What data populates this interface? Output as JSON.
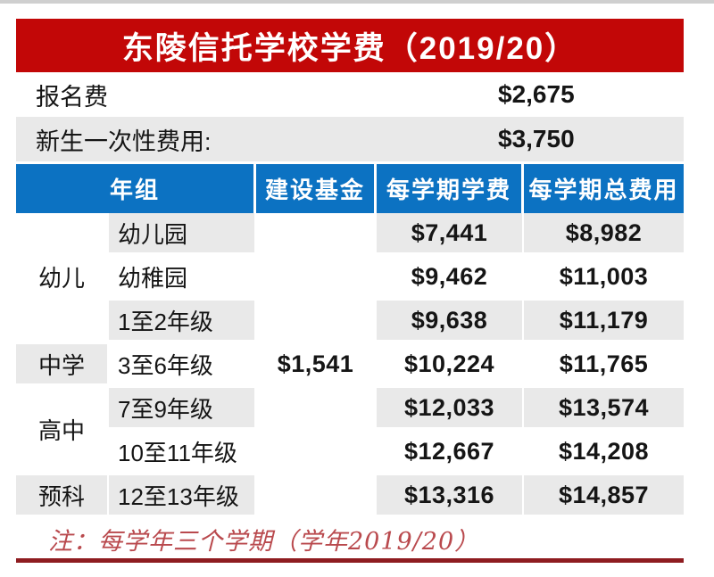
{
  "title": "东陵信托学校学费（2019/20）",
  "pre_rows": [
    {
      "label": "报名费",
      "value": "$2,675"
    },
    {
      "label": "新生一次性费用:",
      "value": "$3,750"
    }
  ],
  "table": {
    "headers": [
      "年组",
      "建设基金",
      "每学期学费",
      "每学期总费用"
    ],
    "groups": [
      {
        "label": "幼儿",
        "span": 3
      },
      {
        "label": "中学",
        "span": 1
      },
      {
        "label": "高中",
        "span": 2
      },
      {
        "label": "预科",
        "span": 1
      }
    ],
    "development_levy": "$1,541",
    "rows": [
      {
        "grade": "幼儿园",
        "fee": "$7,441",
        "total": "$8,982"
      },
      {
        "grade": "幼稚园",
        "fee": "$9,462",
        "total": "$11,003"
      },
      {
        "grade": "1至2年级",
        "fee": "$9,638",
        "total": "$11,179"
      },
      {
        "grade": "3至6年级",
        "fee": "$10,224",
        "total": "$11,765"
      },
      {
        "grade": "7至9年级",
        "fee": "$12,033",
        "total": "$13,574"
      },
      {
        "grade": "10至11年级",
        "fee": "$12,667",
        "total": "$14,208"
      },
      {
        "grade": "12至13年级",
        "fee": "$13,316",
        "total": "$14,857"
      }
    ]
  },
  "note": "注：每学年三个学期（学年2019/20）",
  "colors": {
    "banner_red": "#c20707",
    "header_blue": "#0c72c2",
    "row_gray": "#e9e9e9",
    "note_red": "#b9494d",
    "bottom_line_red": "#8e1c20"
  }
}
